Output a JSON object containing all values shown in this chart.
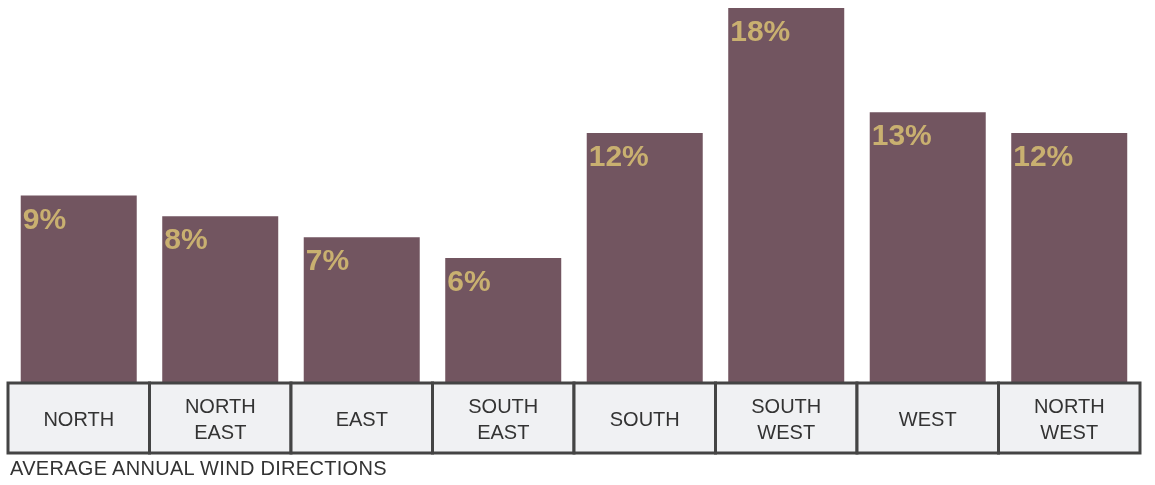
{
  "chart_data": {
    "type": "bar",
    "title": "AVERAGE ANNUAL WIND DIRECTIONS",
    "categories": [
      "NORTH",
      "NORTH EAST",
      "EAST",
      "SOUTH EAST",
      "SOUTH",
      "SOUTH WEST",
      "WEST",
      "NORTH WEST"
    ],
    "values": [
      9,
      8,
      7,
      6,
      12,
      18,
      13,
      12
    ],
    "value_labels": [
      "9%",
      "8%",
      "7%",
      "6%",
      "12%",
      "18%",
      "13%",
      "12%"
    ],
    "color": "#725560"
  }
}
